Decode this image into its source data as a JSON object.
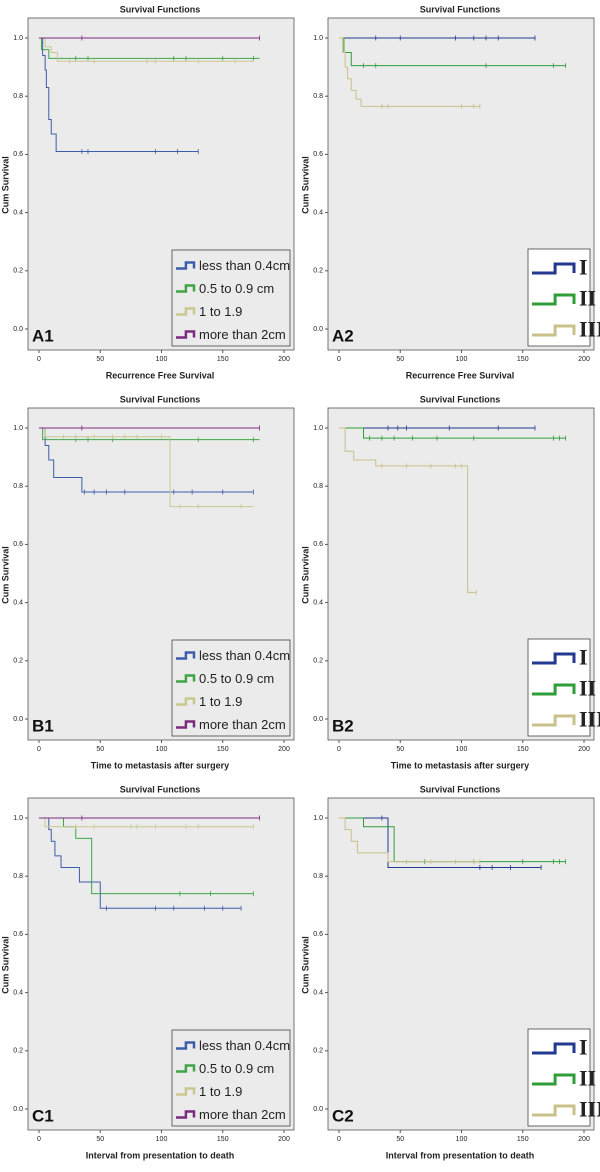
{
  "chart_data": [
    {
      "type": "step",
      "title": "Survival Functions",
      "panel_label": "A1",
      "x_label": "Recurrence Free Survival",
      "y_label": "Cum Survival",
      "xlim": [
        0,
        200
      ],
      "ylim": [
        0,
        1
      ],
      "xticks": [
        0,
        50,
        100,
        150,
        200
      ],
      "yticks": [
        {
          "value": 0,
          "label": "0.0"
        },
        {
          "value": 0.2,
          "label": "0.2"
        },
        {
          "value": 0.4,
          "label": "0.4"
        },
        {
          "value": 0.6,
          "label": "0.6"
        },
        {
          "value": 0.8,
          "label": "0.8"
        },
        {
          "value": 1,
          "label": "1.0"
        }
      ],
      "legend": "lower right",
      "series": [
        {
          "name": "less than 0.4cm",
          "color": "#3d5da8",
          "x": [
            0,
            3,
            5,
            6,
            8,
            10,
            14,
            130
          ],
          "values": [
            1,
            0.94,
            0.89,
            0.83,
            0.72,
            0.67,
            0.61,
            0.61
          ],
          "censored": [
            35,
            40,
            95,
            113,
            130
          ]
        },
        {
          "name": "0.5 to 0.9 cm",
          "color": "#3fa546",
          "x": [
            0,
            2,
            8,
            180
          ],
          "values": [
            1,
            0.96,
            0.93,
            0.93
          ],
          "censored": [
            30,
            40,
            110,
            120,
            150,
            175
          ]
        },
        {
          "name": "1 to 1.9",
          "color": "#c9c88f",
          "x": [
            0,
            5,
            10,
            15,
            175
          ],
          "values": [
            1,
            0.97,
            0.95,
            0.92,
            0.92
          ],
          "censored": [
            25,
            45,
            88,
            95,
            130,
            160
          ]
        },
        {
          "name": "more than 2cm",
          "color": "#7b2b7e",
          "x": [
            0,
            180
          ],
          "values": [
            1,
            1
          ],
          "censored": [
            35,
            180
          ]
        }
      ]
    },
    {
      "type": "step",
      "title": "Survival Functions",
      "panel_label": "A2",
      "x_label": "Recurrence Free Survival",
      "y_label": "Cum Survival",
      "xlim": [
        0,
        200
      ],
      "ylim": [
        0,
        1
      ],
      "xticks": [
        0,
        50,
        100,
        150,
        200
      ],
      "yticks": [
        {
          "value": 0,
          "label": "0.0"
        },
        {
          "value": 0.2,
          "label": "0.2"
        },
        {
          "value": 0.4,
          "label": "0.4"
        },
        {
          "value": 0.6,
          "label": "0.6"
        },
        {
          "value": 0.8,
          "label": "0.8"
        },
        {
          "value": 1,
          "label": "1.0"
        }
      ],
      "legend": "lower right",
      "series": [
        {
          "name": "I",
          "color": "#22398f",
          "x": [
            0,
            160
          ],
          "values": [
            1,
            1
          ],
          "censored": [
            30,
            50,
            95,
            110,
            120,
            130,
            160
          ]
        },
        {
          "name": "II",
          "color": "#2f9e38",
          "x": [
            0,
            4,
            10,
            185
          ],
          "values": [
            1,
            0.95,
            0.905,
            0.905
          ],
          "censored": [
            20,
            30,
            120,
            175,
            185
          ]
        },
        {
          "name": "III",
          "color": "#c9c08a",
          "x": [
            0,
            3,
            5,
            7,
            10,
            14,
            18,
            115
          ],
          "values": [
            1,
            0.95,
            0.9,
            0.86,
            0.82,
            0.79,
            0.765,
            0.765
          ],
          "censored": [
            35,
            40,
            100,
            110,
            115
          ]
        }
      ]
    },
    {
      "type": "step",
      "title": "Survival Functions",
      "panel_label": "B1",
      "x_label": "Time to metastasis after surgery",
      "y_label": "Cum Survival",
      "xlim": [
        0,
        200
      ],
      "ylim": [
        0,
        1
      ],
      "xticks": [
        0,
        50,
        100,
        150,
        200
      ],
      "yticks": [
        {
          "value": 0,
          "label": "0.0"
        },
        {
          "value": 0.2,
          "label": "0.2"
        },
        {
          "value": 0.4,
          "label": "0.4"
        },
        {
          "value": 0.6,
          "label": "0.6"
        },
        {
          "value": 0.8,
          "label": "0.8"
        },
        {
          "value": 1,
          "label": "1.0"
        }
      ],
      "legend": "lower right",
      "series": [
        {
          "name": "less than 0.4cm",
          "color": "#3d5da8",
          "x": [
            0,
            5,
            8,
            12,
            35,
            175
          ],
          "values": [
            1,
            0.94,
            0.89,
            0.83,
            0.78,
            0.78
          ],
          "censored": [
            37,
            45,
            55,
            70,
            110,
            125,
            150,
            175
          ]
        },
        {
          "name": "0.5 to 0.9 cm",
          "color": "#3fa546",
          "x": [
            0,
            3,
            180
          ],
          "values": [
            1,
            0.96,
            0.96
          ],
          "censored": [
            30,
            40,
            60,
            130,
            175
          ]
        },
        {
          "name": "1 to 1.9",
          "color": "#c9c88f",
          "x": [
            0,
            5,
            107,
            175
          ],
          "values": [
            1,
            0.97,
            0.73,
            0.73
          ],
          "censored": [
            20,
            30,
            45,
            60,
            70,
            80,
            100,
            115,
            130,
            165
          ]
        },
        {
          "name": "more than 2cm",
          "color": "#7b2b7e",
          "x": [
            0,
            180
          ],
          "values": [
            1,
            1
          ],
          "censored": [
            35,
            180
          ]
        }
      ]
    },
    {
      "type": "step",
      "title": "Survival Functions",
      "panel_label": "B2",
      "x_label": "Time to metastasis after surgery",
      "y_label": "Cum Survival",
      "xlim": [
        0,
        200
      ],
      "ylim": [
        0,
        1
      ],
      "xticks": [
        0,
        50,
        100,
        150,
        200
      ],
      "yticks": [
        {
          "value": 0,
          "label": "0.0"
        },
        {
          "value": 0.2,
          "label": "0.2"
        },
        {
          "value": 0.4,
          "label": "0.4"
        },
        {
          "value": 0.6,
          "label": "0.6"
        },
        {
          "value": 0.8,
          "label": "0.8"
        },
        {
          "value": 1,
          "label": "1.0"
        }
      ],
      "legend": "lower right",
      "series": [
        {
          "name": "I",
          "color": "#22398f",
          "x": [
            0,
            160
          ],
          "values": [
            1,
            1
          ],
          "censored": [
            40,
            48,
            55,
            90,
            130,
            160
          ]
        },
        {
          "name": "II",
          "color": "#2f9e38",
          "x": [
            0,
            20,
            185
          ],
          "values": [
            1,
            0.965,
            0.965
          ],
          "censored": [
            25,
            35,
            45,
            60,
            80,
            110,
            175,
            180,
            185
          ]
        },
        {
          "name": "III",
          "color": "#c9c08a",
          "x": [
            0,
            5,
            12,
            30,
            105,
            112
          ],
          "values": [
            1,
            0.92,
            0.89,
            0.87,
            0.435,
            0.435
          ],
          "censored": [
            35,
            55,
            75,
            95,
            100,
            112
          ]
        }
      ]
    },
    {
      "type": "step",
      "title": "Survival Functions",
      "panel_label": "C1",
      "x_label": "Interval from presentation to death",
      "y_label": "Cum Survival",
      "xlim": [
        0,
        200
      ],
      "ylim": [
        0,
        1
      ],
      "xticks": [
        0,
        50,
        100,
        150,
        200
      ],
      "yticks": [
        {
          "value": 0,
          "label": "0.0"
        },
        {
          "value": 0.2,
          "label": "0.2"
        },
        {
          "value": 0.4,
          "label": "0.4"
        },
        {
          "value": 0.6,
          "label": "0.6"
        },
        {
          "value": 0.8,
          "label": "0.8"
        },
        {
          "value": 1,
          "label": "1.0"
        }
      ],
      "legend": "lower right",
      "series": [
        {
          "name": "less than 0.4cm",
          "color": "#3d5da8",
          "x": [
            0,
            8,
            10,
            13,
            18,
            33,
            50,
            165
          ],
          "values": [
            1,
            0.96,
            0.92,
            0.87,
            0.83,
            0.78,
            0.69,
            0.69
          ],
          "censored": [
            55,
            95,
            110,
            135,
            150,
            165
          ]
        },
        {
          "name": "0.5 to 0.9 cm",
          "color": "#3fa546",
          "x": [
            0,
            20,
            30,
            43,
            175
          ],
          "values": [
            1,
            0.97,
            0.93,
            0.74,
            0.74
          ],
          "censored": [
            115,
            140,
            175
          ]
        },
        {
          "name": "1 to 1.9",
          "color": "#c9c88f",
          "x": [
            0,
            5,
            175
          ],
          "values": [
            1,
            0.97,
            0.97
          ],
          "censored": [
            30,
            45,
            75,
            80,
            95,
            120,
            130,
            175
          ]
        },
        {
          "name": "more than 2cm",
          "color": "#7b2b7e",
          "x": [
            0,
            180
          ],
          "values": [
            1,
            1
          ],
          "censored": [
            35,
            180
          ]
        }
      ]
    },
    {
      "type": "step",
      "title": "Survival Functions",
      "panel_label": "C2",
      "x_label": "Interval from presentation to death",
      "y_label": "Cum Survival",
      "xlim": [
        0,
        200
      ],
      "ylim": [
        0,
        1
      ],
      "xticks": [
        0,
        50,
        100,
        150,
        200
      ],
      "yticks": [
        {
          "value": 0,
          "label": "0.0"
        },
        {
          "value": 0.2,
          "label": "0.2"
        },
        {
          "value": 0.4,
          "label": "0.4"
        },
        {
          "value": 0.6,
          "label": "0.6"
        },
        {
          "value": 0.8,
          "label": "0.8"
        },
        {
          "value": 1,
          "label": "1.0"
        }
      ],
      "legend": "lower right",
      "series": [
        {
          "name": "I",
          "color": "#22398f",
          "x": [
            0,
            40,
            165
          ],
          "values": [
            1,
            0.83,
            0.83
          ],
          "censored": [
            35,
            115,
            125,
            140,
            165
          ]
        },
        {
          "name": "II",
          "color": "#2f9e38",
          "x": [
            0,
            20,
            45,
            185
          ],
          "values": [
            1,
            0.97,
            0.85,
            0.85
          ],
          "censored": [
            70,
            110,
            150,
            175,
            180,
            185
          ]
        },
        {
          "name": "III",
          "color": "#c9c08a",
          "x": [
            0,
            5,
            10,
            15,
            40,
            115
          ],
          "values": [
            1,
            0.96,
            0.92,
            0.88,
            0.85,
            0.85
          ],
          "censored": [
            55,
            75,
            95,
            110,
            115
          ]
        }
      ]
    }
  ]
}
